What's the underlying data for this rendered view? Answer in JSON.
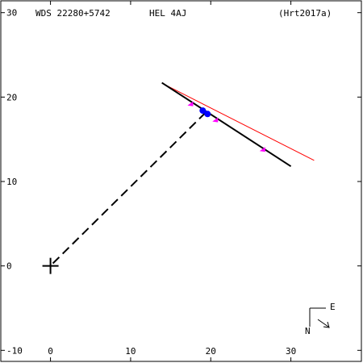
{
  "header": {
    "designation": "WDS 22280+5742",
    "discoverer": "HEL   4AJ",
    "reference": "(Hrt2017a)"
  },
  "compass": {
    "east_label": "E",
    "north_label": "N"
  },
  "chart_data": {
    "type": "scatter",
    "title": "",
    "xlabel": "",
    "ylabel": "",
    "xlim": [
      -6.3,
      39
    ],
    "ylim": [
      -11.5,
      31.5
    ],
    "x_ticks": [
      0,
      10,
      20,
      30
    ],
    "x_tick_labels": [
      "0",
      "10",
      "20",
      "30"
    ],
    "y_ticks": [
      -10,
      0,
      10,
      20,
      30
    ],
    "y_tick_labels": [
      "-10",
      "0",
      "10",
      "20",
      "30"
    ],
    "grid": false,
    "colors": {
      "orbit": "#000000",
      "line_of_nodes": "#ff0000",
      "observations": "#ff00ff",
      "latest_observation": "#0000ff",
      "periastron_link": "#000000"
    },
    "primary_star": {
      "x": 0,
      "y": 0,
      "marker": "plus"
    },
    "orbit_segment": [
      [
        13.9,
        21.7
      ],
      [
        30.0,
        11.8
      ]
    ],
    "line_of_nodes": [
      [
        14.0,
        21.6
      ],
      [
        32.9,
        12.5
      ]
    ],
    "periastron_link": [
      [
        0.3,
        0.3
      ],
      [
        19.5,
        18.3
      ]
    ],
    "observations": [
      {
        "x": 17.5,
        "y": 19.2
      },
      {
        "x": 20.6,
        "y": 17.3
      },
      {
        "x": 26.5,
        "y": 13.8
      }
    ],
    "latest_observation": [
      {
        "x": 19.0,
        "y": 18.4
      },
      {
        "x": 19.6,
        "y": 18.0
      }
    ]
  }
}
